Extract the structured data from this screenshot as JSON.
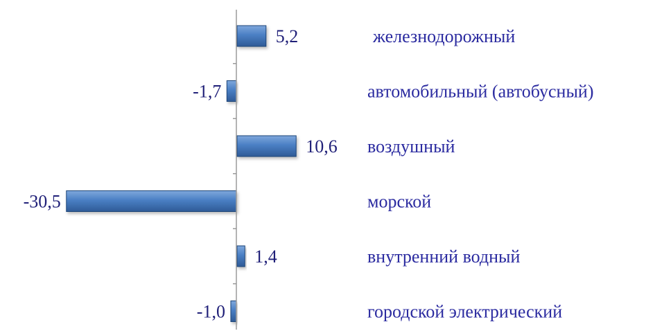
{
  "chart_data": {
    "type": "bar",
    "orientation": "horizontal",
    "title": "",
    "xlabel": "",
    "ylabel": "",
    "categories": [
      "железнодорожный",
      "автомобильный (автобусный)",
      "воздушный",
      "морской",
      "внутренний водный",
      "городской электрический"
    ],
    "values": [
      5.2,
      -1.7,
      10.6,
      -30.5,
      1.4,
      -1.0
    ],
    "value_labels": [
      "5,2",
      "-1,7",
      "10,6",
      "-30,5",
      "1,4",
      "-1,0"
    ],
    "xlim": [
      -31.2,
      25
    ],
    "grid": false,
    "legend": "none",
    "colors": {
      "bar_light": "#7fa8dc",
      "bar_mid": "#4a7fc4",
      "bar_dark": "#2f5b97",
      "bar_border": "#1f4578",
      "value_text": "#1f1f78",
      "category_text": "#2b2ba0",
      "axis": "#9a9a9a"
    }
  }
}
